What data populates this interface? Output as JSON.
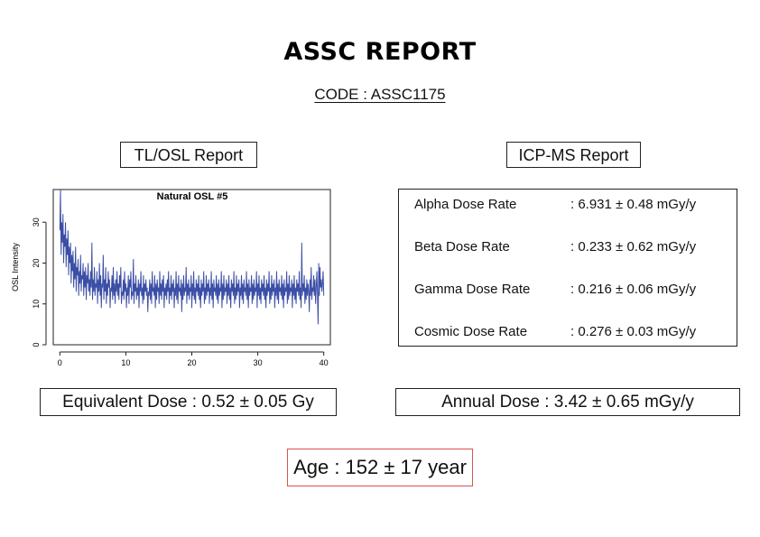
{
  "header": {
    "title": "ASSC REPORT",
    "code": "CODE : ASSC1175"
  },
  "tl_osl": {
    "label": "TL/OSL Report",
    "equivalent_dose": "Equivalent Dose : 0.52 ± 0.05 Gy"
  },
  "icp_ms": {
    "label": "ICP-MS Report",
    "rows": [
      {
        "name": "Alpha Dose Rate",
        "value": ": 6.931 ± 0.48 mGy/y"
      },
      {
        "name": "Beta Dose Rate",
        "value": ": 0.233 ± 0.62 mGy/y"
      },
      {
        "name": "Gamma Dose Rate",
        "value": ": 0.216 ± 0.06 mGy/y"
      },
      {
        "name": "Cosmic Dose Rate",
        "value": ": 0.276 ± 0.03 mGy/y"
      }
    ],
    "annual_dose": "Annual Dose : 3.42 ± 0.65 mGy/y"
  },
  "age": "Age : 152 ± 17 year",
  "chart_data": {
    "type": "line",
    "title": "Natural OSL #5",
    "xlabel": "",
    "ylabel": "OSL Intensity",
    "xlim": [
      -1,
      41
    ],
    "ylim": [
      0,
      38
    ],
    "xticks": [
      0,
      10,
      20,
      30,
      40
    ],
    "yticks": [
      0,
      10,
      20,
      30
    ],
    "grid": false,
    "color": "#3b4ea6",
    "series": [
      {
        "values": [
          28,
          38,
          22,
          30,
          25,
          32,
          20,
          27,
          24,
          30,
          19,
          26,
          22,
          28,
          17,
          24,
          20,
          25,
          15,
          22,
          18,
          23,
          14,
          20,
          16,
          24,
          13,
          19,
          17,
          21,
          12,
          18,
          15,
          22,
          13,
          17,
          16,
          20,
          12,
          18,
          14,
          19,
          11,
          17,
          15,
          20,
          13,
          16,
          12,
          18,
          14,
          25,
          11,
          16,
          13,
          19,
          12,
          15,
          14,
          18,
          10,
          16,
          13,
          20,
          12,
          17,
          9,
          15,
          14,
          22,
          11,
          16,
          13,
          19,
          10,
          15,
          12,
          18,
          14,
          16,
          9,
          14,
          13,
          17,
          11,
          19,
          12,
          15,
          10,
          16,
          13,
          18,
          12,
          15,
          11,
          17,
          14,
          19,
          10,
          13,
          12,
          16,
          11,
          18,
          13,
          15,
          9,
          14,
          12,
          17,
          10,
          16,
          14,
          18,
          11,
          13,
          12,
          21,
          10,
          15,
          13,
          17,
          11,
          14,
          12,
          16,
          9,
          15,
          13,
          18,
          12,
          14,
          10,
          17,
          11,
          15,
          13,
          16,
          12,
          14,
          8,
          13,
          12,
          16,
          11,
          15,
          10,
          18,
          13,
          14,
          12,
          17,
          9,
          15,
          11,
          16,
          13,
          14,
          10,
          18,
          12,
          15,
          11,
          16,
          13,
          17,
          9,
          14,
          12,
          15,
          11,
          16,
          13,
          18,
          10,
          14,
          12,
          17,
          11,
          15,
          13,
          16,
          9,
          14,
          12,
          18,
          11,
          15,
          10,
          17,
          13,
          14,
          12,
          16,
          8,
          15,
          11,
          17,
          12,
          14,
          13,
          19,
          10,
          15,
          12,
          16,
          11,
          14,
          13,
          17,
          9,
          15,
          12,
          18,
          11,
          14,
          10,
          16,
          13,
          15,
          12,
          17,
          11,
          14,
          9,
          16,
          12,
          15,
          13,
          18,
          10,
          14,
          11,
          17,
          12,
          15,
          13,
          16,
          10,
          14,
          12,
          18,
          11,
          15,
          9,
          16,
          13,
          14,
          12,
          17,
          11,
          15,
          10,
          16,
          12,
          14,
          13,
          18,
          9,
          15,
          11,
          17,
          12,
          14,
          13,
          16,
          10,
          15,
          12,
          17,
          11,
          14,
          9,
          16,
          13,
          15,
          12,
          18,
          10,
          14,
          11,
          17,
          12,
          15,
          13,
          16,
          9,
          14,
          12,
          17,
          11,
          15,
          10,
          16,
          13,
          14,
          12,
          18,
          11,
          15,
          9,
          16,
          12,
          14,
          13,
          17,
          10,
          15,
          11,
          16,
          12,
          14,
          13,
          18,
          9,
          15,
          12,
          17,
          11,
          14,
          10,
          16,
          13,
          15,
          12,
          17,
          11,
          14,
          9,
          16,
          12,
          15,
          13,
          18,
          10,
          14,
          11,
          17,
          12,
          15,
          13,
          16,
          9,
          14,
          12,
          18,
          11,
          15,
          10,
          16,
          13,
          14,
          12,
          17,
          11,
          15,
          9,
          16,
          12,
          14,
          13,
          18,
          10,
          15,
          11,
          17,
          12,
          14,
          13,
          16,
          9,
          15,
          12,
          17,
          11,
          14,
          10,
          16,
          13,
          15,
          12,
          18,
          11,
          14,
          9,
          25,
          12,
          15,
          13,
          17,
          10,
          14,
          11,
          16,
          12,
          15,
          13,
          8,
          16,
          12,
          19,
          11,
          14,
          13,
          17,
          12,
          16,
          10,
          14,
          18,
          12,
          5,
          20,
          12,
          19,
          14,
          16,
          13,
          15,
          18,
          12
        ]
      }
    ]
  }
}
